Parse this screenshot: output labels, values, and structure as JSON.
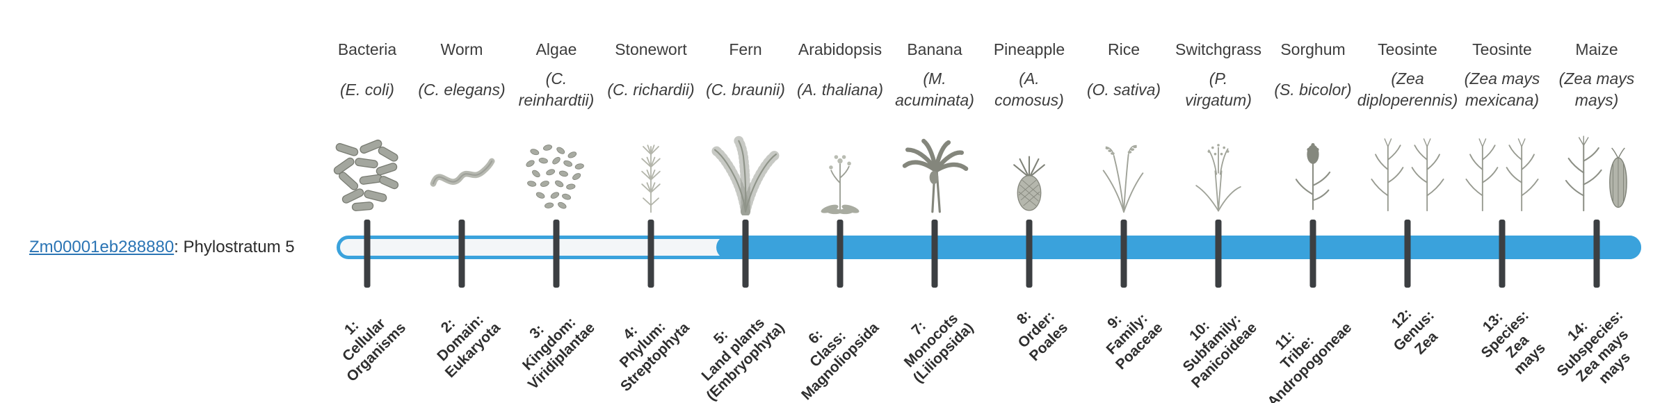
{
  "gene": {
    "id": "Zm00001eb288880",
    "suffix": ": Phylostratum 5"
  },
  "bar": {
    "color": "#3aa2dc",
    "empty_fill": "#f3f6f8",
    "filled_from_index": 5,
    "filled_from_label": "5: Land plants (Embryophyta)"
  },
  "tick_color": "#3c3f42",
  "strata": [
    {
      "common": "Bacteria",
      "sci": [
        "(E. coli)"
      ],
      "icon": "bacteria-icon",
      "label": [
        "1:",
        "Cellular",
        "Organisms"
      ]
    },
    {
      "common": "Worm",
      "sci": [
        "(C. elegans)"
      ],
      "icon": "worm-icon",
      "label": [
        "2:",
        "Domain:",
        "Eukaryota"
      ]
    },
    {
      "common": "Algae",
      "sci": [
        "(C.",
        "reinhardtii)"
      ],
      "icon": "algae-icon",
      "label": [
        "3:",
        "Kingdom:",
        "Viridiplantae"
      ]
    },
    {
      "common": "Stonewort",
      "sci": [
        "(C. richardii)"
      ],
      "icon": "stonewort-icon",
      "label": [
        "4:",
        "Phylum:",
        "Streptophyta"
      ]
    },
    {
      "common": "Fern",
      "sci": [
        "(C. braunii)"
      ],
      "icon": "fern-icon",
      "label": [
        "5:",
        "Land plants",
        "(Embryophyta)"
      ]
    },
    {
      "common": "Arabidopsis",
      "sci": [
        "(A. thaliana)"
      ],
      "icon": "arabidopsis-icon",
      "label": [
        "6:",
        "Class:",
        "Magnoliopsida"
      ]
    },
    {
      "common": "Banana",
      "sci": [
        "(M.",
        "acuminata)"
      ],
      "icon": "banana-icon",
      "label": [
        "7:",
        "Monocots",
        "(Liliopsida)"
      ]
    },
    {
      "common": "Pineapple",
      "sci": [
        "(A.",
        "comosus)"
      ],
      "icon": "pineapple-icon",
      "label": [
        "8:",
        "Order:",
        "Poales"
      ]
    },
    {
      "common": "Rice",
      "sci": [
        "(O. sativa)"
      ],
      "icon": "rice-icon",
      "label": [
        "9:",
        "Family:",
        "Poaceae"
      ]
    },
    {
      "common": "Switchgrass",
      "sci": [
        "(P.",
        "virgatum)"
      ],
      "icon": "switchgrass-icon",
      "label": [
        "10:",
        "Subfamily:",
        "Panicoideae"
      ]
    },
    {
      "common": "Sorghum",
      "sci": [
        "(S. bicolor)"
      ],
      "icon": "sorghum-icon",
      "label": [
        "11:",
        "Tribe:",
        "Andropogoneae"
      ]
    },
    {
      "common": "Teosinte",
      "sci": [
        "(Zea",
        "diploperennis)"
      ],
      "icon": "teosinte-icon",
      "label": [
        "12:",
        "Genus:",
        "Zea"
      ]
    },
    {
      "common": "Teosinte",
      "sci": [
        "(Zea mays",
        "mexicana)"
      ],
      "icon": "teosinte-icon",
      "label": [
        "13:",
        "Species:",
        "Zea",
        "mays"
      ]
    },
    {
      "common": "Maize",
      "sci": [
        "(Zea mays",
        "mays)"
      ],
      "icon": "maize-icon",
      "label": [
        "14:",
        "Subspecies:",
        "Zea mays",
        "mays"
      ]
    }
  ]
}
